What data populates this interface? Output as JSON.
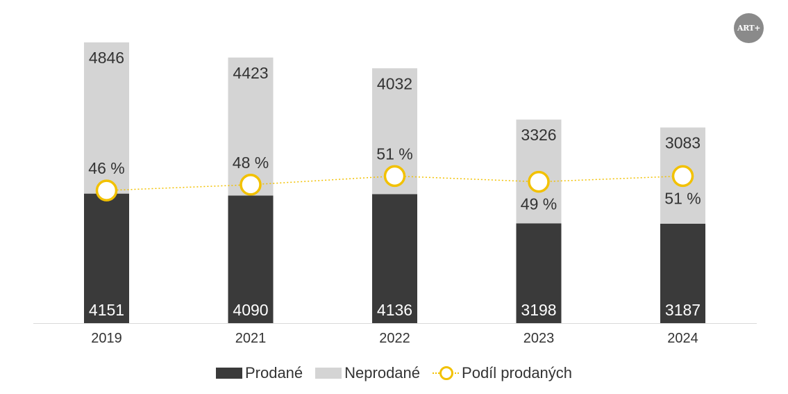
{
  "logo_text": "ART+",
  "colors": {
    "sold": "#3a3a3a",
    "unsold": "#d4d4d4",
    "share": "#f2c100",
    "axis": "#d9d9d9"
  },
  "chart_data": {
    "type": "bar",
    "stacked": true,
    "categories": [
      "2019",
      "2021",
      "2022",
      "2023",
      "2024"
    ],
    "series": [
      {
        "name": "Prodané",
        "values": [
          4151,
          4090,
          4136,
          3198,
          3187
        ]
      },
      {
        "name": "Neprodané",
        "values": [
          4846,
          4423,
          4032,
          3326,
          3083
        ]
      }
    ],
    "line_series": {
      "name": "Podíl prodaných",
      "values": [
        46,
        48,
        51,
        49,
        51
      ],
      "labels": [
        "46 %",
        "48 %",
        "51 %",
        "49 %",
        "51 %"
      ]
    },
    "legend_position": "bottom",
    "grid": false
  },
  "legend": {
    "sold": "Prodané",
    "unsold": "Neprodané",
    "share": "Podíl prodaných"
  }
}
